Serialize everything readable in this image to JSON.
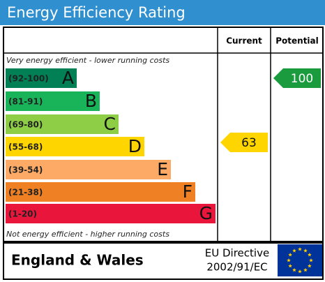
{
  "title": "Energy Efficiency Rating",
  "columns": {
    "current": "Current",
    "potential": "Potential"
  },
  "top_note": "Very energy efficient - lower running costs",
  "bottom_note": "Not energy efficient - higher running costs",
  "bands": [
    {
      "range": "(92-100)",
      "letter": "A",
      "color": "#008054"
    },
    {
      "range": "(81-91)",
      "letter": "B",
      "color": "#19b459"
    },
    {
      "range": "(69-80)",
      "letter": "C",
      "color": "#8dce46"
    },
    {
      "range": "(55-68)",
      "letter": "D",
      "color": "#ffd500"
    },
    {
      "range": "(39-54)",
      "letter": "E",
      "color": "#fcaa65"
    },
    {
      "range": "(21-38)",
      "letter": "F",
      "color": "#ef8023"
    },
    {
      "range": "(1-20)",
      "letter": "G",
      "color": "#e9153b"
    }
  ],
  "current": {
    "value": 63,
    "color": "#ffd500"
  },
  "potential": {
    "value": 100,
    "color": "#1a9b3d"
  },
  "footer": {
    "region": "England & Wales",
    "directive": "EU Directive",
    "directive_number": "2002/91/EC"
  }
}
